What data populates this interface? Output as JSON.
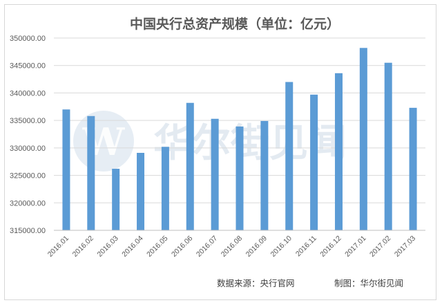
{
  "chart_data": {
    "type": "bar",
    "title": "中国央行总资产规模（单位：亿元）",
    "categories": [
      "2016.01",
      "2016.02",
      "2016.03",
      "2016.04",
      "2016.05",
      "2016.06",
      "2016.07",
      "2016.08",
      "2016.09",
      "2016.10",
      "2016.11",
      "2016.12",
      "2017.01",
      "2017.02",
      "2017.03"
    ],
    "values": [
      337000,
      335800,
      326200,
      329100,
      330200,
      338200,
      335300,
      333900,
      334900,
      342000,
      339700,
      343600,
      348200,
      345500,
      337300
    ],
    "ylim": [
      315000,
      350000
    ],
    "yticks": [
      "315000.00",
      "320000.00",
      "325000.00",
      "330000.00",
      "335000.00",
      "340000.00",
      "345000.00",
      "350000.00"
    ],
    "grid": true,
    "bar_color": "#5b9bd5",
    "grid_color": "#d9d9d9"
  },
  "footer": {
    "source": "数据来源：央行官网",
    "credit": "制图：华尔街见闻"
  },
  "watermark": {
    "text": "华尔街见闻",
    "logo_letter": "W",
    "color": "#cdd9e6"
  }
}
